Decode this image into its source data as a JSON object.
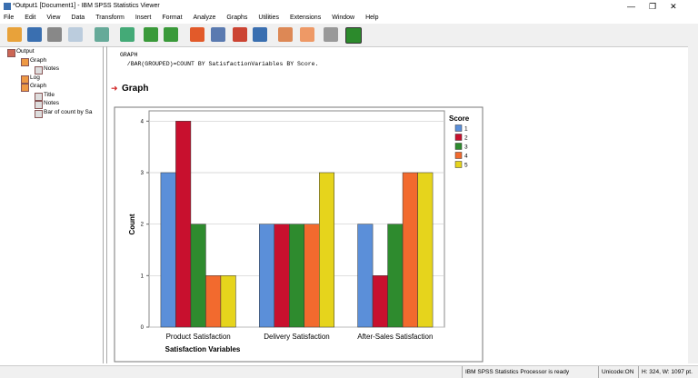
{
  "window": {
    "title": "*Output1 [Document1] - IBM SPSS Statistics Viewer"
  },
  "menu": [
    "File",
    "Edit",
    "View",
    "Data",
    "Transform",
    "Insert",
    "Format",
    "Analyze",
    "Graphs",
    "Utilities",
    "Extensions",
    "Window",
    "Help"
  ],
  "tree": [
    {
      "label": "Output",
      "level": 0
    },
    {
      "label": "Graph",
      "level": 1
    },
    {
      "label": "Notes",
      "level": 2
    },
    {
      "label": "Log",
      "level": 1
    },
    {
      "label": "Graph",
      "level": 1
    },
    {
      "label": "Title",
      "level": 2
    },
    {
      "label": "Notes",
      "level": 2
    },
    {
      "label": "Bar of count by Sa",
      "level": 2
    }
  ],
  "syntax": [
    "GRAPH",
    "  /BAR(GROUPED)=COUNT BY SatisfactionVariables BY Score."
  ],
  "heading": "Graph",
  "chart": {
    "type": "bar",
    "xlabel": "Satisfaction Variables",
    "ylabel": "Count",
    "categories": [
      "Product Satisfaction",
      "Delivery Satisfaction",
      "After-Sales Satisfaction"
    ],
    "legend_title": "Score",
    "series": [
      {
        "name": "1",
        "color": "#5b8fd9",
        "values": [
          3,
          2,
          2
        ]
      },
      {
        "name": "2",
        "color": "#c8102e",
        "values": [
          4,
          2,
          1
        ]
      },
      {
        "name": "3",
        "color": "#2e8b2e",
        "values": [
          2,
          2,
          2
        ]
      },
      {
        "name": "4",
        "color": "#f26a2e",
        "values": [
          1,
          2,
          3
        ]
      },
      {
        "name": "5",
        "color": "#e6d41c",
        "values": [
          1,
          3,
          3
        ]
      }
    ],
    "ylim": [
      0,
      4.2
    ],
    "yticks": [
      0,
      1,
      2,
      3,
      4
    ],
    "grid": true
  },
  "status": [
    "IBM SPSS Statistics Processor is ready",
    "Unicode:ON",
    "H: 324, W: 1097 pt."
  ]
}
